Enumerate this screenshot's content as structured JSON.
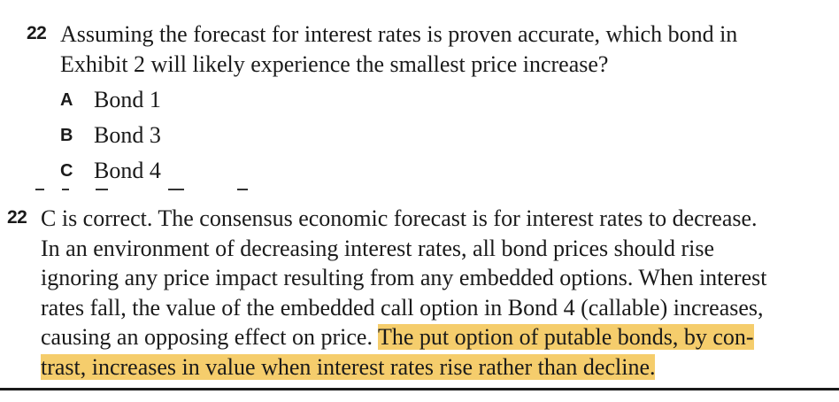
{
  "question": {
    "number": "22",
    "text_line1": "Assuming the forecast for interest rates is proven accurate, which bond in",
    "text_line2": "Exhibit 2 will likely experience the smallest price increase?",
    "choices": [
      {
        "letter": "A",
        "text": "Bond 1"
      },
      {
        "letter": "B",
        "text": "Bond 3"
      },
      {
        "letter": "C",
        "text": "Bond 4"
      }
    ]
  },
  "answer": {
    "number": "22",
    "lines": [
      "C is correct. The consensus economic forecast is for interest rates to decrease.",
      "In an environment of decreasing interest rates, all bond prices should rise",
      "ignoring any price impact resulting from any embedded options. When interest",
      "rates fall, the value of the embedded call option in Bond 4 (callable) increases,"
    ],
    "line5_plain": "causing an opposing effect on price. ",
    "line5_highlight": "The put option of putable bonds, by con-",
    "line6_highlight": "trast, increases in value when interest rates rise rather than decline."
  },
  "highlight_color": "#f5cd6c"
}
